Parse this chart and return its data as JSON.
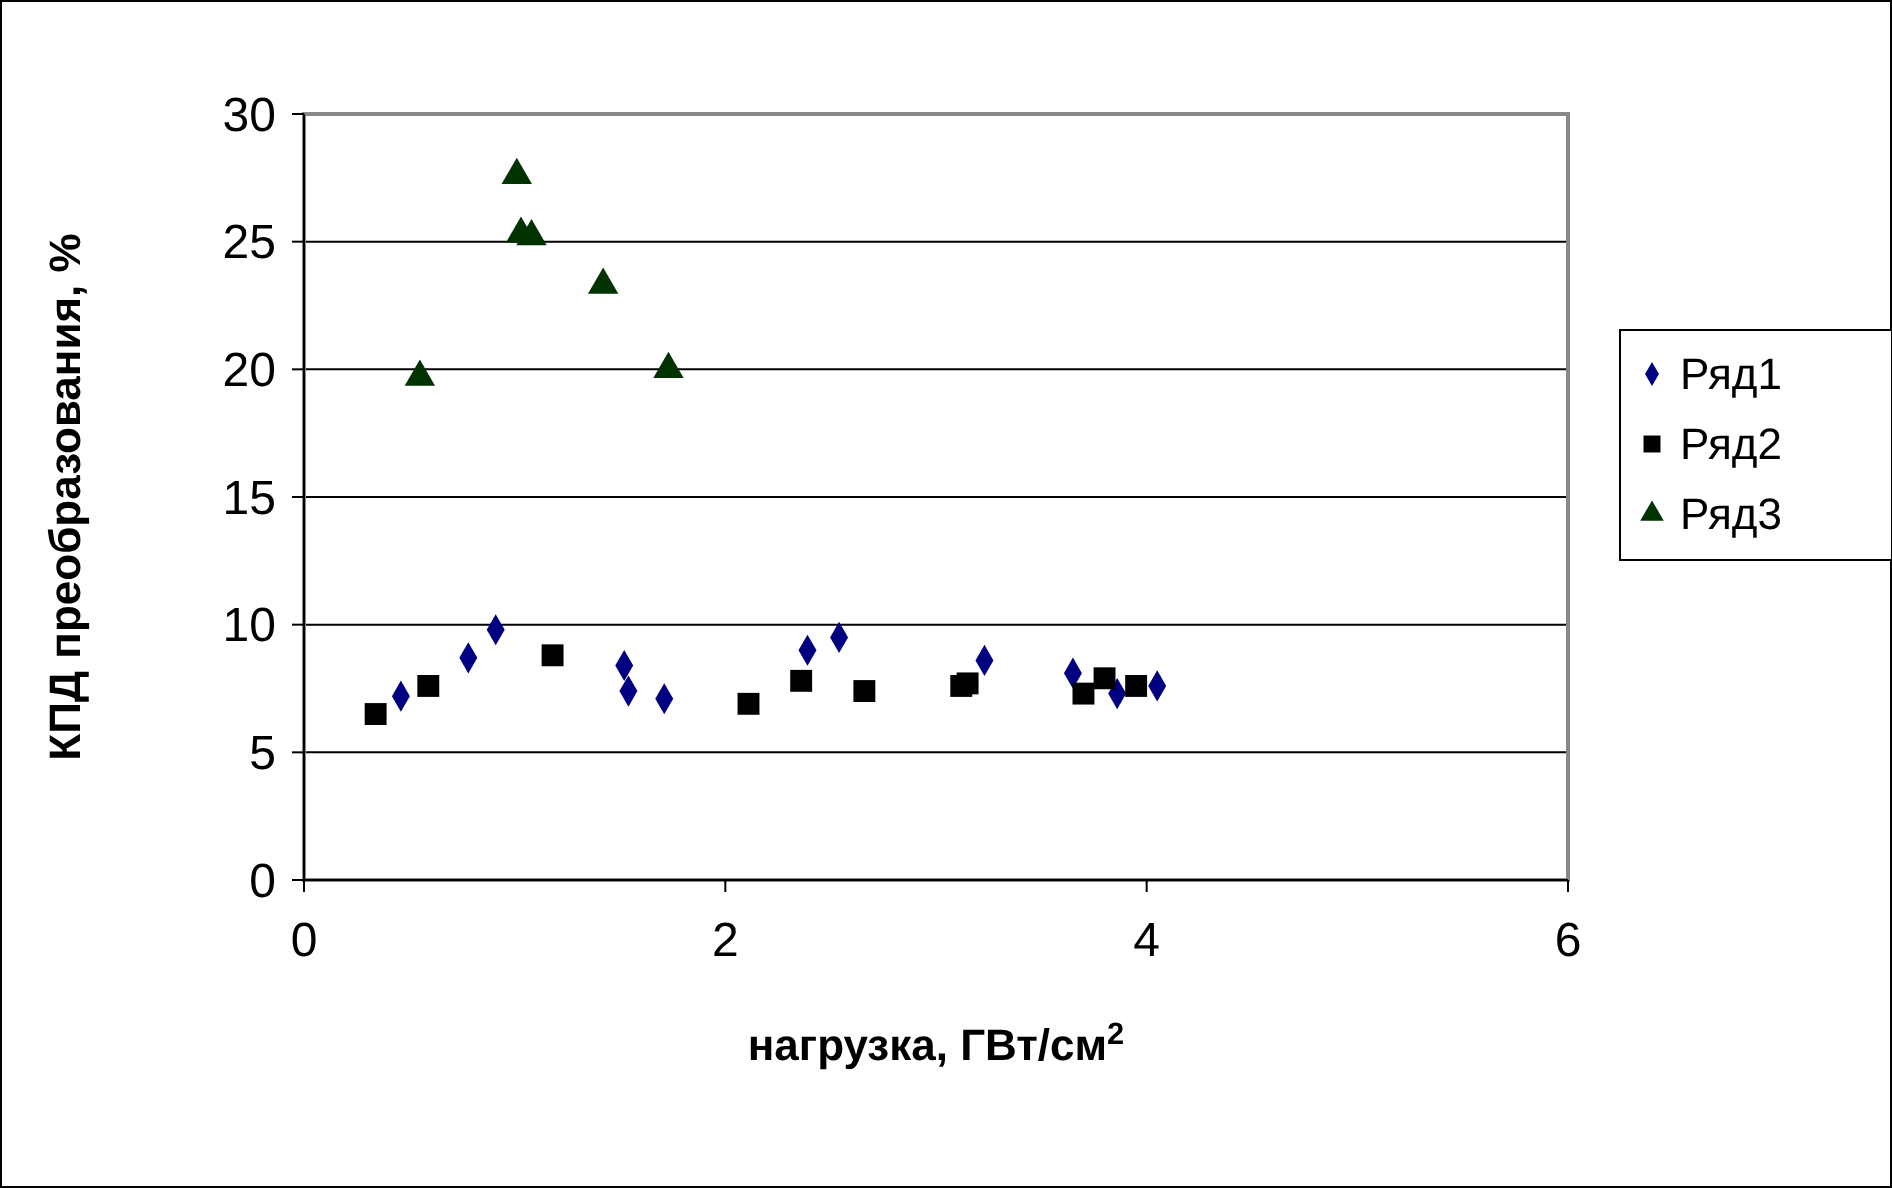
{
  "chart_data": {
    "type": "scatter",
    "xlabel": "нагрузка, ГВт/см$^{2}$",
    "ylabel": "КПД преобразования,  %",
    "xlim": [
      0,
      6
    ],
    "xticks": [
      0,
      2,
      4,
      6
    ],
    "ylim": [
      0,
      30
    ],
    "yticks": [
      0,
      5,
      10,
      15,
      20,
      25,
      30
    ],
    "grid": "y",
    "legend": "right",
    "series": [
      {
        "name": "Ряд1",
        "color": "#000080",
        "marker": "diamond",
        "x": [
          0.46,
          0.78,
          0.91,
          1.52,
          1.54,
          1.71,
          2.39,
          2.54,
          3.23,
          3.65,
          3.86,
          4.05
        ],
        "values": [
          7.2,
          8.7,
          9.8,
          8.4,
          7.4,
          7.1,
          9.0,
          9.5,
          8.6,
          8.1,
          7.3,
          7.6
        ]
      },
      {
        "name": "Ряд2",
        "color": "#000000",
        "marker": "square",
        "x": [
          0.34,
          0.59,
          1.18,
          2.11,
          2.36,
          2.66,
          3.12,
          3.15,
          3.7,
          3.8,
          3.95
        ],
        "values": [
          6.5,
          7.6,
          8.8,
          6.9,
          7.8,
          7.4,
          7.6,
          7.7,
          7.3,
          7.9,
          7.6
        ]
      },
      {
        "name": "Ряд3",
        "color": "#003300",
        "marker": "triangle",
        "x": [
          0.55,
          1.01,
          1.03,
          1.08,
          1.42,
          1.73
        ],
        "values": [
          19.7,
          27.6,
          25.3,
          25.2,
          23.3,
          20.0
        ]
      }
    ]
  }
}
